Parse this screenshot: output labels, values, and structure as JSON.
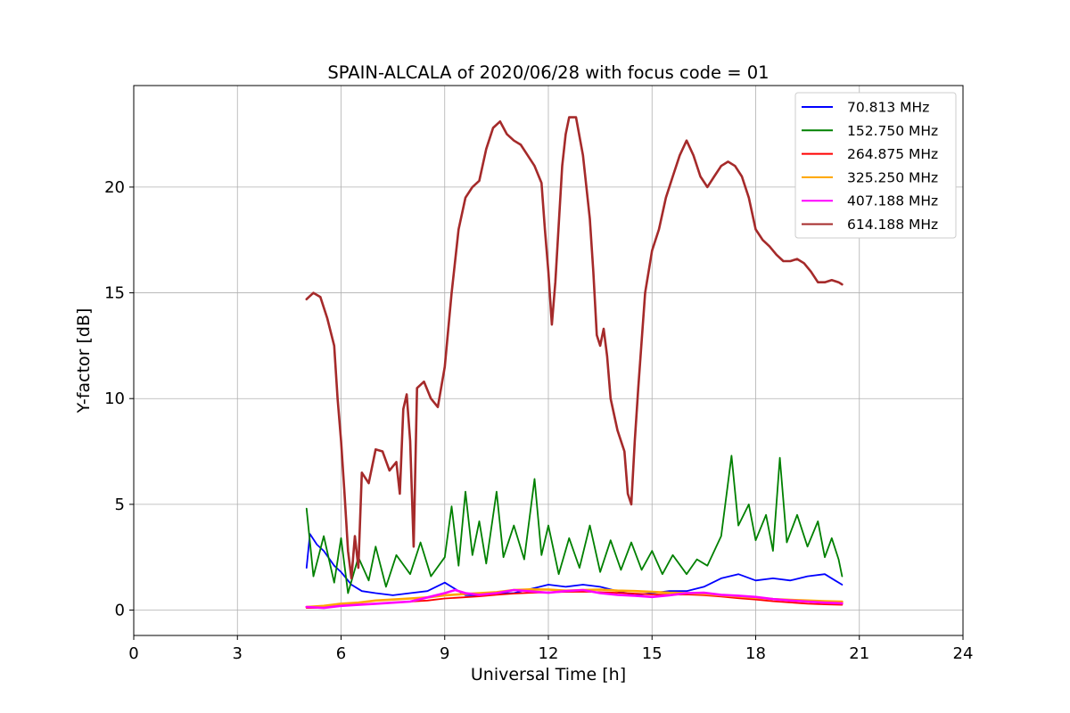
{
  "chart_data": {
    "type": "line",
    "title": "SPAIN-ALCALA of 2020/06/28 with focus code = 01",
    "xlabel": "Universal Time [h]",
    "ylabel": "Y-factor [dB]",
    "xlim": [
      0,
      24
    ],
    "ylim": [
      -1.2,
      24.8
    ],
    "xticks": [
      0,
      3,
      6,
      9,
      12,
      15,
      18,
      21,
      24
    ],
    "yticks": [
      0,
      5,
      10,
      15,
      20
    ],
    "grid": true,
    "legend_position": "top-right",
    "series": [
      {
        "name": " 70.813 MHz",
        "color": "#0000ff",
        "points": [
          [
            5.0,
            2.0
          ],
          [
            5.1,
            3.6
          ],
          [
            5.3,
            3.1
          ],
          [
            5.5,
            2.8
          ],
          [
            5.8,
            2.1
          ],
          [
            6.0,
            1.8
          ],
          [
            6.3,
            1.2
          ],
          [
            6.6,
            0.9
          ],
          [
            7.0,
            0.8
          ],
          [
            7.5,
            0.7
          ],
          [
            8.0,
            0.8
          ],
          [
            8.5,
            0.9
          ],
          [
            9.0,
            1.3
          ],
          [
            9.3,
            1.0
          ],
          [
            9.6,
            0.7
          ],
          [
            10.0,
            0.7
          ],
          [
            10.5,
            0.8
          ],
          [
            11.0,
            0.8
          ],
          [
            11.5,
            1.0
          ],
          [
            12.0,
            1.2
          ],
          [
            12.5,
            1.1
          ],
          [
            13.0,
            1.2
          ],
          [
            13.5,
            1.1
          ],
          [
            14.0,
            0.9
          ],
          [
            14.5,
            0.7
          ],
          [
            15.0,
            0.8
          ],
          [
            15.5,
            0.9
          ],
          [
            16.0,
            0.9
          ],
          [
            16.5,
            1.1
          ],
          [
            17.0,
            1.5
          ],
          [
            17.5,
            1.7
          ],
          [
            18.0,
            1.4
          ],
          [
            18.5,
            1.5
          ],
          [
            19.0,
            1.4
          ],
          [
            19.5,
            1.6
          ],
          [
            20.0,
            1.7
          ],
          [
            20.3,
            1.4
          ],
          [
            20.5,
            1.2
          ]
        ]
      },
      {
        "name": "152.750 MHz",
        "color": "#008000",
        "points": [
          [
            5.0,
            4.8
          ],
          [
            5.2,
            1.6
          ],
          [
            5.5,
            3.5
          ],
          [
            5.8,
            1.3
          ],
          [
            6.0,
            3.4
          ],
          [
            6.2,
            0.8
          ],
          [
            6.5,
            2.5
          ],
          [
            6.8,
            1.4
          ],
          [
            7.0,
            3.0
          ],
          [
            7.3,
            1.1
          ],
          [
            7.6,
            2.6
          ],
          [
            8.0,
            1.7
          ],
          [
            8.3,
            3.2
          ],
          [
            8.6,
            1.6
          ],
          [
            9.0,
            2.5
          ],
          [
            9.2,
            4.9
          ],
          [
            9.4,
            2.1
          ],
          [
            9.6,
            5.6
          ],
          [
            9.8,
            2.6
          ],
          [
            10.0,
            4.2
          ],
          [
            10.2,
            2.2
          ],
          [
            10.5,
            5.6
          ],
          [
            10.7,
            2.5
          ],
          [
            11.0,
            4.0
          ],
          [
            11.3,
            2.4
          ],
          [
            11.6,
            6.2
          ],
          [
            11.8,
            2.6
          ],
          [
            12.0,
            4.0
          ],
          [
            12.3,
            1.7
          ],
          [
            12.6,
            3.4
          ],
          [
            12.9,
            2.0
          ],
          [
            13.2,
            4.0
          ],
          [
            13.5,
            1.8
          ],
          [
            13.8,
            3.3
          ],
          [
            14.1,
            1.9
          ],
          [
            14.4,
            3.2
          ],
          [
            14.7,
            1.9
          ],
          [
            15.0,
            2.8
          ],
          [
            15.3,
            1.7
          ],
          [
            15.6,
            2.6
          ],
          [
            16.0,
            1.7
          ],
          [
            16.3,
            2.4
          ],
          [
            16.6,
            2.1
          ],
          [
            17.0,
            3.5
          ],
          [
            17.3,
            7.3
          ],
          [
            17.5,
            4.0
          ],
          [
            17.8,
            5.0
          ],
          [
            18.0,
            3.3
          ],
          [
            18.3,
            4.5
          ],
          [
            18.5,
            2.8
          ],
          [
            18.7,
            7.2
          ],
          [
            18.9,
            3.2
          ],
          [
            19.2,
            4.5
          ],
          [
            19.5,
            3.0
          ],
          [
            19.8,
            4.2
          ],
          [
            20.0,
            2.5
          ],
          [
            20.2,
            3.4
          ],
          [
            20.4,
            2.4
          ],
          [
            20.5,
            1.6
          ]
        ]
      },
      {
        "name": "264.875 MHz",
        "color": "#ff0000",
        "points": [
          [
            5.0,
            0.1
          ],
          [
            5.5,
            0.1
          ],
          [
            6.0,
            0.2
          ],
          [
            6.5,
            0.25
          ],
          [
            7.0,
            0.3
          ],
          [
            7.5,
            0.35
          ],
          [
            8.0,
            0.4
          ],
          [
            8.5,
            0.45
          ],
          [
            9.0,
            0.55
          ],
          [
            9.5,
            0.6
          ],
          [
            10.0,
            0.65
          ],
          [
            10.5,
            0.72
          ],
          [
            11.0,
            0.78
          ],
          [
            11.5,
            0.82
          ],
          [
            12.0,
            0.84
          ],
          [
            12.5,
            0.86
          ],
          [
            13.0,
            0.87
          ],
          [
            13.5,
            0.85
          ],
          [
            14.0,
            0.82
          ],
          [
            14.5,
            0.78
          ],
          [
            15.0,
            0.74
          ],
          [
            15.5,
            0.72
          ],
          [
            16.0,
            0.74
          ],
          [
            16.5,
            0.7
          ],
          [
            17.0,
            0.64
          ],
          [
            17.5,
            0.56
          ],
          [
            18.0,
            0.5
          ],
          [
            18.5,
            0.42
          ],
          [
            19.0,
            0.36
          ],
          [
            19.5,
            0.3
          ],
          [
            20.0,
            0.27
          ],
          [
            20.5,
            0.25
          ]
        ]
      },
      {
        "name": "325.250 MHz",
        "color": "#ffa500",
        "points": [
          [
            5.0,
            0.15
          ],
          [
            5.5,
            0.2
          ],
          [
            6.0,
            0.3
          ],
          [
            6.5,
            0.35
          ],
          [
            7.0,
            0.45
          ],
          [
            7.5,
            0.5
          ],
          [
            8.0,
            0.55
          ],
          [
            8.5,
            0.6
          ],
          [
            9.0,
            0.7
          ],
          [
            9.5,
            0.75
          ],
          [
            10.0,
            0.8
          ],
          [
            10.5,
            0.85
          ],
          [
            11.0,
            0.95
          ],
          [
            11.5,
            0.98
          ],
          [
            12.0,
            0.97
          ],
          [
            12.5,
            0.92
          ],
          [
            13.0,
            0.95
          ],
          [
            13.5,
            0.97
          ],
          [
            14.0,
            0.92
          ],
          [
            14.5,
            0.9
          ],
          [
            15.0,
            0.86
          ],
          [
            15.5,
            0.82
          ],
          [
            16.0,
            0.8
          ],
          [
            16.5,
            0.76
          ],
          [
            17.0,
            0.7
          ],
          [
            17.5,
            0.64
          ],
          [
            18.0,
            0.58
          ],
          [
            18.5,
            0.52
          ],
          [
            19.0,
            0.48
          ],
          [
            19.5,
            0.45
          ],
          [
            20.0,
            0.42
          ],
          [
            20.5,
            0.4
          ]
        ]
      },
      {
        "name": "407.188 MHz",
        "color": "#ff00ff",
        "points": [
          [
            5.0,
            0.15
          ],
          [
            5.5,
            0.1
          ],
          [
            6.0,
            0.2
          ],
          [
            6.5,
            0.25
          ],
          [
            7.0,
            0.3
          ],
          [
            7.5,
            0.35
          ],
          [
            8.0,
            0.4
          ],
          [
            8.5,
            0.6
          ],
          [
            9.0,
            0.8
          ],
          [
            9.3,
            0.95
          ],
          [
            9.6,
            0.8
          ],
          [
            10.0,
            0.72
          ],
          [
            10.5,
            0.8
          ],
          [
            11.0,
            0.95
          ],
          [
            11.5,
            0.88
          ],
          [
            12.0,
            0.82
          ],
          [
            12.5,
            0.9
          ],
          [
            13.0,
            0.95
          ],
          [
            13.5,
            0.8
          ],
          [
            14.0,
            0.72
          ],
          [
            14.5,
            0.68
          ],
          [
            15.0,
            0.62
          ],
          [
            15.5,
            0.7
          ],
          [
            16.0,
            0.8
          ],
          [
            16.5,
            0.82
          ],
          [
            17.0,
            0.72
          ],
          [
            17.5,
            0.68
          ],
          [
            18.0,
            0.62
          ],
          [
            18.5,
            0.52
          ],
          [
            19.0,
            0.45
          ],
          [
            19.5,
            0.4
          ],
          [
            20.0,
            0.35
          ],
          [
            20.5,
            0.32
          ]
        ]
      },
      {
        "name": "614.188 MHz",
        "color": "#a52a2a",
        "points": [
          [
            5.0,
            14.7
          ],
          [
            5.2,
            15.0
          ],
          [
            5.4,
            14.8
          ],
          [
            5.6,
            13.8
          ],
          [
            5.8,
            12.5
          ],
          [
            5.9,
            10.0
          ],
          [
            6.0,
            8.0
          ],
          [
            6.1,
            5.5
          ],
          [
            6.2,
            2.8
          ],
          [
            6.3,
            1.5
          ],
          [
            6.4,
            3.5
          ],
          [
            6.5,
            2.0
          ],
          [
            6.6,
            6.5
          ],
          [
            6.8,
            6.0
          ],
          [
            7.0,
            7.6
          ],
          [
            7.2,
            7.5
          ],
          [
            7.4,
            6.6
          ],
          [
            7.6,
            7.0
          ],
          [
            7.7,
            5.5
          ],
          [
            7.8,
            9.5
          ],
          [
            7.9,
            10.2
          ],
          [
            8.0,
            8.0
          ],
          [
            8.1,
            3.0
          ],
          [
            8.2,
            10.5
          ],
          [
            8.4,
            10.8
          ],
          [
            8.6,
            10.0
          ],
          [
            8.8,
            9.6
          ],
          [
            9.0,
            11.5
          ],
          [
            9.2,
            15.0
          ],
          [
            9.4,
            18.0
          ],
          [
            9.6,
            19.5
          ],
          [
            9.8,
            20.0
          ],
          [
            10.0,
            20.3
          ],
          [
            10.2,
            21.8
          ],
          [
            10.4,
            22.8
          ],
          [
            10.6,
            23.1
          ],
          [
            10.8,
            22.5
          ],
          [
            11.0,
            22.2
          ],
          [
            11.2,
            22.0
          ],
          [
            11.4,
            21.5
          ],
          [
            11.6,
            21.0
          ],
          [
            11.8,
            20.2
          ],
          [
            11.9,
            18.0
          ],
          [
            12.0,
            16.0
          ],
          [
            12.1,
            13.5
          ],
          [
            12.2,
            15.5
          ],
          [
            12.4,
            21.0
          ],
          [
            12.5,
            22.5
          ],
          [
            12.6,
            23.3
          ],
          [
            12.8,
            23.3
          ],
          [
            13.0,
            21.5
          ],
          [
            13.2,
            18.5
          ],
          [
            13.3,
            16.0
          ],
          [
            13.4,
            13.0
          ],
          [
            13.5,
            12.5
          ],
          [
            13.6,
            13.3
          ],
          [
            13.7,
            12.0
          ],
          [
            13.8,
            10.0
          ],
          [
            14.0,
            8.5
          ],
          [
            14.2,
            7.5
          ],
          [
            14.3,
            5.5
          ],
          [
            14.4,
            5.0
          ],
          [
            14.5,
            8.0
          ],
          [
            14.6,
            10.5
          ],
          [
            14.8,
            15.0
          ],
          [
            15.0,
            17.0
          ],
          [
            15.2,
            18.0
          ],
          [
            15.4,
            19.5
          ],
          [
            15.6,
            20.5
          ],
          [
            15.8,
            21.5
          ],
          [
            16.0,
            22.2
          ],
          [
            16.2,
            21.5
          ],
          [
            16.4,
            20.5
          ],
          [
            16.6,
            20.0
          ],
          [
            16.8,
            20.5
          ],
          [
            17.0,
            21.0
          ],
          [
            17.2,
            21.2
          ],
          [
            17.4,
            21.0
          ],
          [
            17.6,
            20.5
          ],
          [
            17.8,
            19.5
          ],
          [
            18.0,
            18.0
          ],
          [
            18.2,
            17.5
          ],
          [
            18.4,
            17.2
          ],
          [
            18.6,
            16.8
          ],
          [
            18.8,
            16.5
          ],
          [
            19.0,
            16.5
          ],
          [
            19.2,
            16.6
          ],
          [
            19.4,
            16.4
          ],
          [
            19.6,
            16.0
          ],
          [
            19.8,
            15.5
          ],
          [
            20.0,
            15.5
          ],
          [
            20.2,
            15.6
          ],
          [
            20.4,
            15.5
          ],
          [
            20.5,
            15.4
          ]
        ]
      }
    ]
  }
}
